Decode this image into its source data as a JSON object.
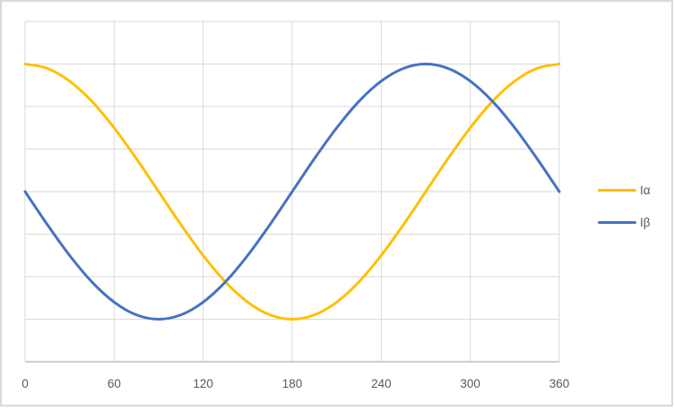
{
  "chart": {
    "background_color": "#ffffff",
    "frame_color": "#d9d9d9",
    "gridline_color": "#d9d9d9",
    "axis_line_color": "#bfbfbf",
    "tick_label_color": "#595959",
    "legend_label_color": "#595959"
  },
  "legend": {
    "position": "right",
    "items": [
      {
        "label": "Iα",
        "color": "#ffc000"
      },
      {
        "label": "Iβ",
        "color": "#4472c4"
      }
    ]
  },
  "chart_data": {
    "type": "line",
    "title": "",
    "xlabel": "",
    "ylabel": "",
    "xlim": [
      0,
      360
    ],
    "ylim": [
      -2,
      2
    ],
    "x_ticks": [
      0,
      60,
      120,
      180,
      240,
      300,
      360
    ],
    "x_tick_labels": [
      "0",
      "60",
      "120",
      "180",
      "240",
      "300",
      "360"
    ],
    "y_gridline_step": 0.5,
    "y_tick_labels_visible": false,
    "grid": true,
    "legend_position": "right",
    "x": [
      0,
      15,
      30,
      45,
      60,
      75,
      90,
      105,
      120,
      135,
      150,
      165,
      180,
      195,
      210,
      225,
      240,
      255,
      270,
      285,
      300,
      315,
      330,
      345,
      360
    ],
    "series": [
      {
        "name": "Iα",
        "color": "#ffc000",
        "values": [
          1.5,
          1.449,
          1.299,
          1.061,
          0.75,
          0.388,
          0,
          -0.388,
          -0.75,
          -1.061,
          -1.299,
          -1.449,
          -1.5,
          -1.449,
          -1.299,
          -1.061,
          -0.75,
          -0.388,
          0,
          0.388,
          0.75,
          1.061,
          1.299,
          1.449,
          1.5
        ]
      },
      {
        "name": "Iβ",
        "color": "#4472c4",
        "values": [
          0,
          -0.388,
          -0.75,
          -1.061,
          -1.299,
          -1.449,
          -1.5,
          -1.449,
          -1.299,
          -1.061,
          -0.75,
          -0.388,
          0,
          0.388,
          0.75,
          1.061,
          1.299,
          1.449,
          1.5,
          1.449,
          1.299,
          1.061,
          0.75,
          0.388,
          0
        ]
      }
    ]
  }
}
